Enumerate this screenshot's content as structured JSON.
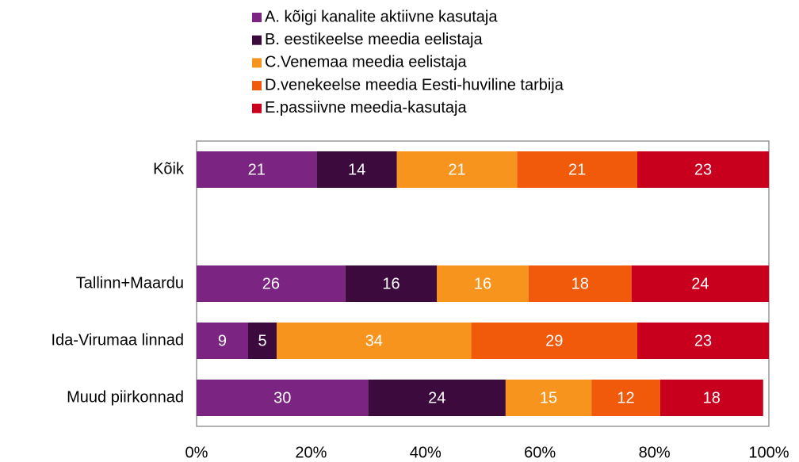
{
  "chart_data": {
    "type": "bar",
    "orientation": "horizontal",
    "stacked": true,
    "categories": [
      "Kõik",
      null,
      "Tallinn+Maardu",
      "Ida-Virumaa linnad",
      "Muud piirkonnad"
    ],
    "series": [
      {
        "name": "A. kõigi kanalite aktiivne kasutaja",
        "color": "#7b2481",
        "values": [
          21,
          null,
          26,
          9,
          30
        ]
      },
      {
        "name": "B. eestikeelse meedia eelistaja",
        "color": "#3c0a3c",
        "values": [
          14,
          null,
          16,
          5,
          24
        ]
      },
      {
        "name": "C.Venemaa meedia eelistaja",
        "color": "#f7941d",
        "values": [
          21,
          null,
          16,
          34,
          15
        ]
      },
      {
        "name": "D.venekeelse meedia Eesti-huviline tarbija",
        "color": "#f05a0a",
        "values": [
          21,
          null,
          18,
          29,
          12
        ]
      },
      {
        "name": "E.passiivne meedia-kasutaja",
        "color": "#c8001e",
        "values": [
          23,
          null,
          24,
          23,
          18
        ]
      }
    ],
    "xlim": [
      0,
      100
    ],
    "xticks": [
      {
        "value": 0,
        "label": "0%"
      },
      {
        "value": 20,
        "label": "20%"
      },
      {
        "value": 40,
        "label": "40%"
      },
      {
        "value": 60,
        "label": "60%"
      },
      {
        "value": 80,
        "label": "80%"
      },
      {
        "value": 100,
        "label": "100%"
      }
    ],
    "legend": "top"
  }
}
